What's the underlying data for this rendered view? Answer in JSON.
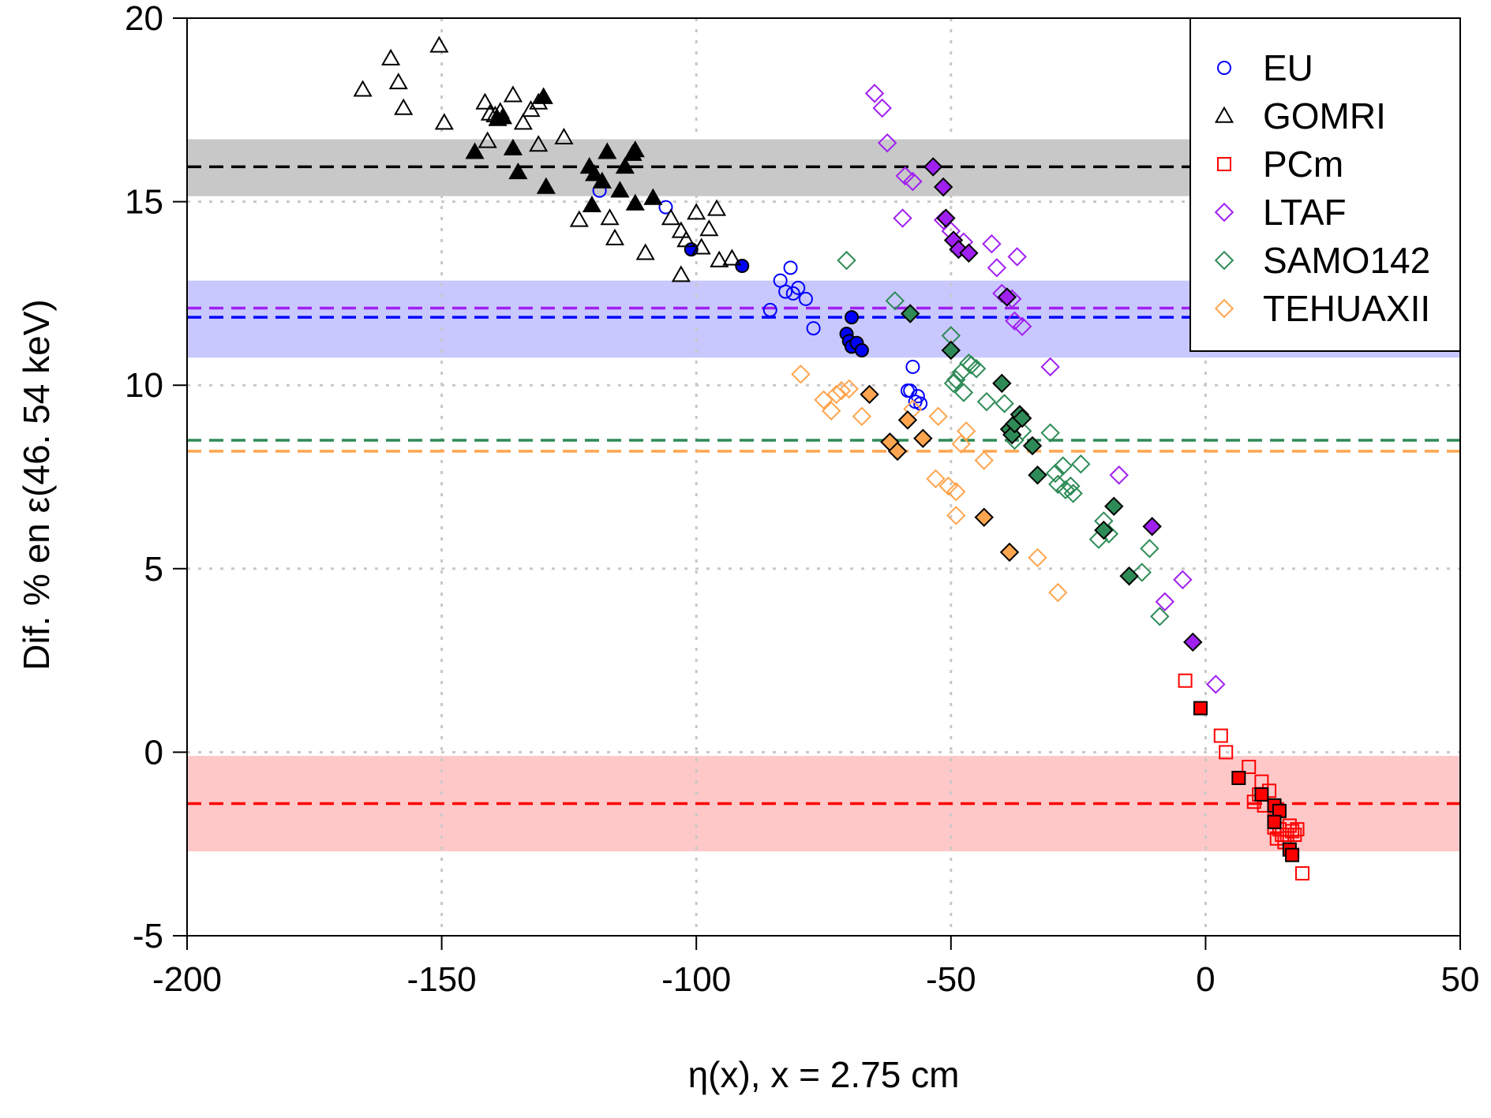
{
  "chart_data": {
    "type": "scatter",
    "xlabel": "η(x), x = 2.75 cm",
    "ylabel": "Dif. % en ε(46. 54 keV)",
    "xlim": [
      -200,
      50
    ],
    "ylim": [
      -5,
      20
    ],
    "x_ticks": [
      "-200",
      "-150",
      "-100",
      "-50",
      "0",
      "50"
    ],
    "y_ticks": [
      "-5",
      "0",
      "5",
      "10",
      "15",
      "20"
    ],
    "grid": true,
    "legend_position": "top-right",
    "series": [
      {
        "name": "EU",
        "color": "#0000FF",
        "marker": "circle",
        "open": [
          [
            -119,
            15.3
          ],
          [
            -106,
            14.85
          ],
          [
            -83.5,
            12.85
          ],
          [
            -82.5,
            12.55
          ],
          [
            -81.5,
            13.2
          ],
          [
            -81,
            12.5
          ],
          [
            -80,
            12.65
          ],
          [
            -78.5,
            12.35
          ],
          [
            -85.5,
            12.05
          ],
          [
            -77,
            11.55
          ],
          [
            -58.5,
            9.85
          ],
          [
            -58,
            9.85
          ],
          [
            -57.5,
            10.5
          ],
          [
            -57,
            9.55
          ],
          [
            -56.5,
            9.7
          ],
          [
            -56,
            9.5
          ]
        ],
        "filled": [
          [
            -101,
            13.7
          ],
          [
            -91,
            13.25
          ],
          [
            -69.5,
            11.85
          ],
          [
            -70.5,
            11.4
          ],
          [
            -70,
            11.2
          ],
          [
            -69.5,
            11.05
          ],
          [
            -68.5,
            11.15
          ],
          [
            -67.5,
            10.95
          ]
        ]
      },
      {
        "name": "GOMRI",
        "color": "#000000",
        "marker": "triangle",
        "open": [
          [
            -165.5,
            18.05
          ],
          [
            -160,
            18.9
          ],
          [
            -158.5,
            18.25
          ],
          [
            -157.5,
            17.55
          ],
          [
            -150.5,
            19.25
          ],
          [
            -149.5,
            17.15
          ],
          [
            -141.5,
            17.7
          ],
          [
            -140.5,
            17.4
          ],
          [
            -139.5,
            17.35
          ],
          [
            -138.5,
            17.45
          ],
          [
            -136,
            17.9
          ],
          [
            -134,
            17.15
          ],
          [
            -132.5,
            17.5
          ],
          [
            -131,
            17.7
          ],
          [
            -131,
            16.55
          ],
          [
            -130,
            17.85
          ],
          [
            -126,
            16.75
          ],
          [
            -141,
            16.65
          ],
          [
            -123,
            14.5
          ],
          [
            -117,
            14.55
          ],
          [
            -116,
            14.0
          ],
          [
            -110,
            13.6
          ],
          [
            -105,
            14.55
          ],
          [
            -103,
            14.2
          ],
          [
            -102,
            13.95
          ],
          [
            -100,
            14.7
          ],
          [
            -99,
            13.75
          ],
          [
            -97.5,
            14.25
          ],
          [
            -96,
            14.8
          ],
          [
            -95.5,
            13.4
          ],
          [
            -93,
            13.45
          ],
          [
            -103,
            13.0
          ]
        ],
        "filled": [
          [
            -143.5,
            16.35
          ],
          [
            -139,
            17.25
          ],
          [
            -138,
            17.3
          ],
          [
            -136,
            16.45
          ],
          [
            -135,
            15.8
          ],
          [
            -130,
            17.85
          ],
          [
            -129.5,
            15.4
          ],
          [
            -121,
            15.95
          ],
          [
            -120,
            15.75
          ],
          [
            -120.5,
            14.9
          ],
          [
            -118.5,
            15.55
          ],
          [
            -117.5,
            16.35
          ],
          [
            -115,
            15.3
          ],
          [
            -114,
            15.95
          ],
          [
            -112.5,
            16.3
          ],
          [
            -112,
            16.4
          ],
          [
            -112,
            14.95
          ],
          [
            -108.5,
            15.1
          ]
        ]
      },
      {
        "name": "PCm",
        "color": "#FF0000",
        "marker": "square",
        "open": [
          [
            -4,
            1.95
          ],
          [
            3,
            0.45
          ],
          [
            4,
            0.0
          ],
          [
            8.5,
            -0.4
          ],
          [
            9.5,
            -1.35
          ],
          [
            10.5,
            -1.15
          ],
          [
            11,
            -0.8
          ],
          [
            11.5,
            -1.45
          ],
          [
            12.5,
            -1.05
          ],
          [
            13.5,
            -1.85
          ],
          [
            13.5,
            -2.05
          ],
          [
            14,
            -2.35
          ],
          [
            14.5,
            -2.1
          ],
          [
            15,
            -2.25
          ],
          [
            15.5,
            -2.45
          ],
          [
            16,
            -2.25
          ],
          [
            16.5,
            -2.0
          ],
          [
            17,
            -2.15
          ],
          [
            17.5,
            -2.25
          ],
          [
            18,
            -2.1
          ],
          [
            19,
            -3.3
          ]
        ],
        "filled": [
          [
            -1,
            1.2
          ],
          [
            6.5,
            -0.7
          ],
          [
            11,
            -1.15
          ],
          [
            13.5,
            -1.45
          ],
          [
            14.5,
            -1.6
          ],
          [
            13.5,
            -1.9
          ],
          [
            16.5,
            -2.65
          ],
          [
            17,
            -2.8
          ]
        ]
      },
      {
        "name": "LTAF",
        "color": "#A020F0",
        "marker": "diamond",
        "open": [
          [
            -65,
            17.95
          ],
          [
            -63.5,
            17.55
          ],
          [
            -62.5,
            16.6
          ],
          [
            -59,
            15.7
          ],
          [
            -57.5,
            15.55
          ],
          [
            -59.5,
            14.55
          ],
          [
            -51.5,
            14.5
          ],
          [
            -50,
            14.2
          ],
          [
            -47.5,
            13.9
          ],
          [
            -42,
            13.85
          ],
          [
            -41,
            13.2
          ],
          [
            -40,
            12.5
          ],
          [
            -38,
            12.35
          ],
          [
            -37,
            13.5
          ],
          [
            -37.5,
            11.75
          ],
          [
            -36,
            11.6
          ],
          [
            -30.5,
            10.5
          ],
          [
            -17,
            7.55
          ],
          [
            -8,
            4.1
          ],
          [
            -4.5,
            4.7
          ],
          [
            2,
            1.85
          ]
        ],
        "filled": [
          [
            -53.5,
            15.95
          ],
          [
            -51.5,
            15.4
          ],
          [
            -51,
            14.55
          ],
          [
            -49.5,
            13.95
          ],
          [
            -48.5,
            13.7
          ],
          [
            -46.5,
            13.6
          ],
          [
            -39,
            12.4
          ],
          [
            -10.5,
            6.15
          ],
          [
            -2.5,
            3.0
          ]
        ]
      },
      {
        "name": "SAMO142",
        "color": "#2E8B57",
        "marker": "diamond",
        "open": [
          [
            -70.5,
            13.4
          ],
          [
            -61,
            12.3
          ],
          [
            -50,
            11.35
          ],
          [
            -49.5,
            10.05
          ],
          [
            -49,
            10.15
          ],
          [
            -48,
            10.35
          ],
          [
            -47.5,
            9.8
          ],
          [
            -46.5,
            10.6
          ],
          [
            -46,
            10.55
          ],
          [
            -45,
            10.45
          ],
          [
            -43,
            9.55
          ],
          [
            -39.5,
            9.5
          ],
          [
            -37.5,
            8.5
          ],
          [
            -36,
            8.75
          ],
          [
            -30.5,
            8.7
          ],
          [
            -29.5,
            7.6
          ],
          [
            -29,
            7.3
          ],
          [
            -28,
            7.8
          ],
          [
            -27.5,
            7.15
          ],
          [
            -26.5,
            7.25
          ],
          [
            -26,
            7.05
          ],
          [
            -24.5,
            7.85
          ],
          [
            -21,
            5.8
          ],
          [
            -20,
            6.3
          ],
          [
            -19,
            5.95
          ],
          [
            -12.5,
            4.9
          ],
          [
            -11,
            5.55
          ],
          [
            -9,
            3.7
          ]
        ],
        "filled": [
          [
            -58,
            11.95
          ],
          [
            -50,
            10.95
          ],
          [
            -40,
            10.05
          ],
          [
            -38.5,
            8.8
          ],
          [
            -38,
            8.65
          ],
          [
            -37.5,
            8.95
          ],
          [
            -36.5,
            9.2
          ],
          [
            -36,
            9.1
          ],
          [
            -34,
            8.35
          ],
          [
            -33,
            7.55
          ],
          [
            -20,
            6.05
          ],
          [
            -18,
            6.7
          ],
          [
            -15,
            4.8
          ]
        ]
      },
      {
        "name": "TEHUAXII",
        "color": "#FFA54F",
        "marker": "diamond",
        "open": [
          [
            -79.5,
            10.3
          ],
          [
            -75,
            9.6
          ],
          [
            -73.5,
            9.3
          ],
          [
            -72.5,
            9.75
          ],
          [
            -71.5,
            9.85
          ],
          [
            -70,
            9.9
          ],
          [
            -67.5,
            9.15
          ],
          [
            -57.5,
            9.35
          ],
          [
            -52.5,
            9.15
          ],
          [
            -53,
            7.45
          ],
          [
            -50.5,
            7.25
          ],
          [
            -49,
            7.1
          ],
          [
            -49,
            6.45
          ],
          [
            -48,
            8.4
          ],
          [
            -47,
            8.75
          ],
          [
            -43.5,
            7.95
          ],
          [
            -33,
            5.3
          ],
          [
            -29,
            4.35
          ]
        ],
        "filled": [
          [
            -66,
            9.75
          ],
          [
            -58.5,
            9.05
          ],
          [
            -62,
            8.45
          ],
          [
            -60.5,
            8.2
          ],
          [
            -55.5,
            8.55
          ],
          [
            -43.5,
            6.4
          ],
          [
            -38.5,
            5.45
          ]
        ]
      }
    ],
    "reference_lines": [
      {
        "series": "GOMRI",
        "y": 15.95,
        "band": [
          15.15,
          16.7
        ],
        "color": "#000000",
        "band_color": "#C8C8C8"
      },
      {
        "series": "EU",
        "y": 11.85,
        "band": [
          10.75,
          12.85
        ],
        "color": "#0000FF",
        "band_color": "#C8C8FF"
      },
      {
        "series": "LTAF",
        "y": 12.1,
        "band": null,
        "color": "#A020F0",
        "band_color": null
      },
      {
        "series": "SAMO142",
        "y": 8.5,
        "band": null,
        "color": "#2E8B57",
        "band_color": null
      },
      {
        "series": "TEHUAXII",
        "y": 8.2,
        "band": null,
        "color": "#FFA54F",
        "band_color": null
      },
      {
        "series": "PCm",
        "y": -1.4,
        "band": [
          -2.7,
          -0.1
        ],
        "color": "#FF0000",
        "band_color": "#FFC8C8"
      }
    ]
  }
}
